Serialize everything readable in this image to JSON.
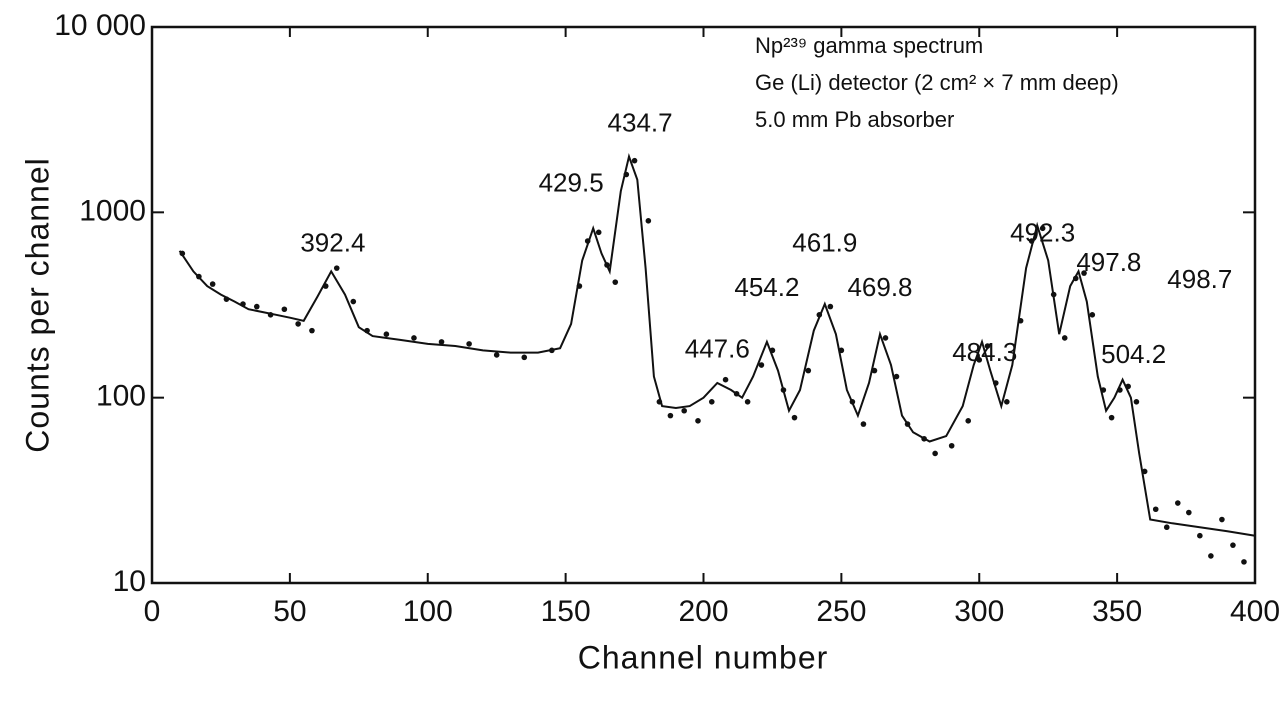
{
  "chart_data": {
    "type": "line",
    "xlabel": "Channel number",
    "ylabel": "Counts per channel",
    "info": [
      "Np²³⁹ gamma spectrum",
      "Ge (Li) detector (2 cm² × 7 mm deep)",
      "5.0 mm  Pb  absorber"
    ],
    "log_y": true,
    "xlim": [
      0,
      400
    ],
    "xticks": [
      0,
      50,
      100,
      150,
      200,
      250,
      300,
      350,
      400
    ],
    "ylim": [
      10,
      10000
    ],
    "yticks": [
      10,
      100,
      1000,
      {
        "value": 10000,
        "label": "10 000"
      }
    ],
    "series": [
      {
        "color": "#111111",
        "mode": "line",
        "x": [
          10,
          15,
          20,
          25,
          30,
          35,
          40,
          45,
          50,
          55,
          60,
          65,
          70,
          75,
          80,
          90,
          100,
          110,
          120,
          130,
          140,
          148,
          152,
          156,
          160,
          163,
          166,
          170,
          173,
          176,
          179,
          182,
          185,
          190,
          195,
          200,
          205,
          210,
          214,
          218,
          223,
          227,
          231,
          235,
          240,
          244,
          248,
          252,
          256,
          260,
          264,
          268,
          272,
          276,
          282,
          288,
          294,
          298,
          301,
          304,
          308,
          312,
          317,
          321,
          325,
          329,
          333,
          336,
          339,
          343,
          346,
          349,
          352,
          355,
          358,
          362,
          370,
          380,
          390,
          400
        ],
        "values": [
          620,
          480,
          400,
          360,
          330,
          300,
          290,
          280,
          270,
          260,
          350,
          480,
          360,
          240,
          215,
          205,
          195,
          190,
          180,
          175,
          175,
          185,
          250,
          550,
          820,
          600,
          480,
          1300,
          2000,
          1500,
          500,
          130,
          90,
          88,
          90,
          100,
          120,
          110,
          100,
          130,
          200,
          140,
          85,
          110,
          230,
          320,
          220,
          110,
          80,
          120,
          220,
          150,
          80,
          65,
          58,
          62,
          90,
          150,
          200,
          140,
          90,
          150,
          500,
          850,
          550,
          220,
          400,
          480,
          330,
          130,
          85,
          100,
          125,
          100,
          50,
          22,
          21,
          20,
          19,
          18
        ]
      },
      {
        "color": "#111111",
        "mode": "points",
        "x": [
          11,
          17,
          22,
          27,
          33,
          38,
          43,
          48,
          53,
          58,
          63,
          67,
          73,
          78,
          85,
          95,
          105,
          115,
          125,
          135,
          145,
          155,
          158,
          162,
          165,
          168,
          172,
          175,
          180,
          184,
          188,
          193,
          198,
          203,
          208,
          212,
          216,
          221,
          225,
          229,
          233,
          238,
          242,
          246,
          250,
          254,
          258,
          262,
          266,
          270,
          274,
          280,
          284,
          290,
          296,
          300,
          303,
          306,
          310,
          315,
          319,
          323,
          327,
          331,
          335,
          338,
          341,
          345,
          348,
          351,
          354,
          357,
          360,
          364,
          368,
          372,
          376,
          380,
          384,
          388,
          392,
          396
        ],
        "values": [
          600,
          450,
          410,
          340,
          320,
          310,
          280,
          300,
          250,
          230,
          400,
          500,
          330,
          230,
          220,
          210,
          200,
          195,
          170,
          165,
          180,
          400,
          700,
          780,
          520,
          420,
          1600,
          1900,
          900,
          95,
          80,
          85,
          75,
          95,
          125,
          105,
          95,
          150,
          180,
          110,
          78,
          140,
          280,
          310,
          180,
          95,
          72,
          140,
          210,
          130,
          72,
          60,
          50,
          55,
          75,
          160,
          190,
          120,
          95,
          260,
          700,
          820,
          360,
          210,
          440,
          470,
          280,
          110,
          78,
          110,
          115,
          95,
          40,
          25,
          20,
          27,
          24,
          18,
          14,
          22,
          16,
          13
        ]
      }
    ],
    "annotations": [
      {
        "text": "392.4",
        "x": 65.6,
        "y": 670
      },
      {
        "text": "429.5",
        "x": 152,
        "y": 1415
      },
      {
        "text": "434.7",
        "x": 177,
        "y": 2970
      },
      {
        "text": "447.6",
        "x": 205,
        "y": 179
      },
      {
        "text": "454.2",
        "x": 223,
        "y": 385
      },
      {
        "text": "461.9",
        "x": 244,
        "y": 670
      },
      {
        "text": "469.8",
        "x": 264,
        "y": 385
      },
      {
        "text": "484.3",
        "x": 302,
        "y": 172
      },
      {
        "text": "492.3",
        "x": 323,
        "y": 760
      },
      {
        "text": "497.8",
        "x": 347,
        "y": 525
      },
      {
        "text": "498.7",
        "x": 380,
        "y": 425
      },
      {
        "text": "504.2",
        "x": 356,
        "y": 168
      }
    ]
  }
}
